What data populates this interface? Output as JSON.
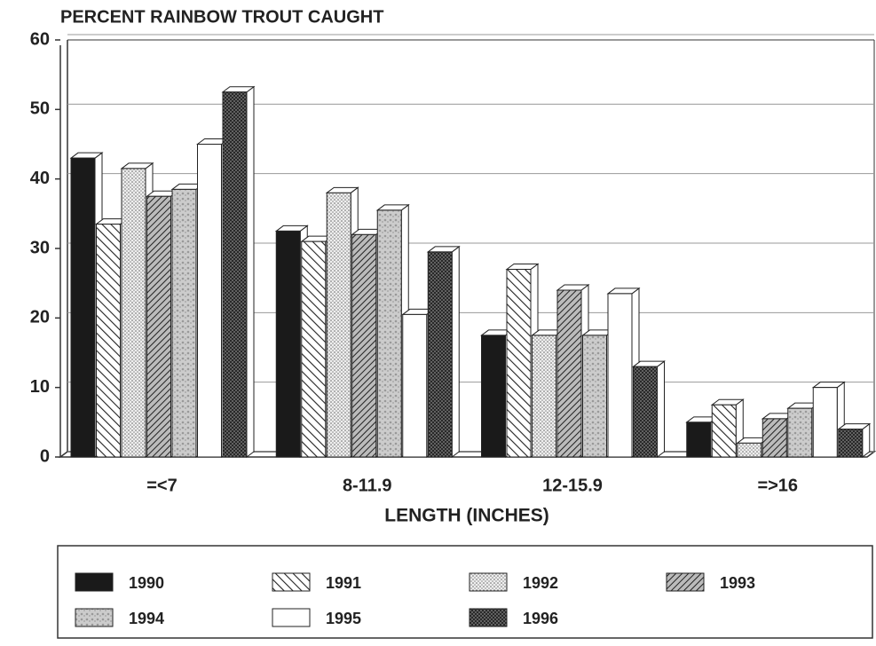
{
  "chart_data": {
    "type": "bar3d",
    "title": "PERCENT RAINBOW TROUT CAUGHT",
    "x_label": "LENGTH (INCHES)",
    "categories": [
      "=<7",
      "8-11.9",
      "12-15.9",
      "=>16"
    ],
    "series": [
      {
        "name": "1990",
        "color": "#1a1a1a",
        "values": [
          43,
          32.5,
          17.5,
          5
        ]
      },
      {
        "name": "1991",
        "color": "#ffffff",
        "values": [
          33.5,
          31,
          27,
          7.5
        ]
      },
      {
        "name": "1992",
        "color": "#dcdcdc",
        "values": [
          41.5,
          38,
          17.5,
          2
        ]
      },
      {
        "name": "1993",
        "color": "#8a8a8a",
        "values": [
          37.5,
          32,
          24,
          5.5
        ]
      },
      {
        "name": "1994",
        "color": "#c4c4c4",
        "values": [
          38.5,
          35.5,
          17.5,
          7
        ]
      },
      {
        "name": "1995",
        "color": "#ffffff",
        "values": [
          45,
          20.5,
          23.5,
          10
        ]
      },
      {
        "name": "1996",
        "color": "#5a5a5a",
        "values": [
          52.5,
          29.5,
          13,
          4
        ]
      }
    ],
    "ylim": [
      0,
      60
    ],
    "yticks": [
      0,
      10,
      20,
      30,
      40,
      50,
      60
    ],
    "grid": true
  }
}
